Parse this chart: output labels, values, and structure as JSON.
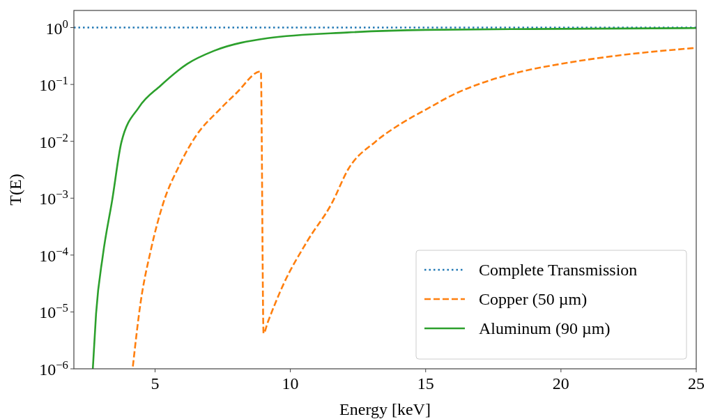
{
  "chart_data": {
    "type": "line",
    "xlabel": "Energy [keV]",
    "ylabel": "T(E)",
    "log": "y",
    "xlim": [
      2,
      25
    ],
    "xticks": [
      5,
      10,
      15,
      20,
      25
    ],
    "ylim": [
      1e-06,
      2
    ],
    "yticks": [
      {
        "value": 1,
        "label": "10$^{0}$"
      },
      {
        "value": 0.1,
        "label": "10$^{−1}$"
      },
      {
        "value": 0.01,
        "label": "10$^{−2}$"
      },
      {
        "value": 0.001,
        "label": "10$^{−3}$"
      },
      {
        "value": 0.0001,
        "label": "10$^{−4}$"
      },
      {
        "value": 1e-05,
        "label": "10$^{−5}$"
      },
      {
        "value": 1e-06,
        "label": "10$^{−6}$"
      }
    ],
    "grid": false,
    "legend": "bottom right",
    "series": [
      {
        "name": "Complete Transmission",
        "color": "#1f77b4",
        "line_style": "dotted",
        "x": [
          2,
          25
        ],
        "values": [
          1,
          1
        ]
      },
      {
        "name": "Copper (50 µm)",
        "color": "#ff7f0e",
        "line_style": "dashed",
        "x": [
          4.18,
          4.46,
          4.85,
          5.3,
          5.89,
          6.49,
          7.38,
          8.0,
          8.91,
          9.01,
          9.16,
          9.75,
          10.64,
          11.53,
          12.15,
          13.14,
          14.13,
          15,
          16.1,
          17.1,
          18.58,
          20,
          22.05,
          25
        ],
        "values": [
          1.1e-06,
          1.4e-05,
          0.000126,
          0.00081,
          0.0037,
          0.012,
          0.036,
          0.07,
          0.17,
          4.2e-06,
          6.5e-06,
          3.1e-05,
          0.00018,
          0.00081,
          0.0033,
          0.0098,
          0.021,
          0.036,
          0.069,
          0.107,
          0.17,
          0.23,
          0.32,
          0.44
        ]
      },
      {
        "name": "Aluminum (90 µm)",
        "color": "#2ca02c",
        "line_style": "solid",
        "x": [
          2.7,
          2.82,
          3.07,
          3.42,
          3.76,
          4.41,
          5.2,
          6.19,
          7.18,
          9.16,
          12.1,
          15,
          20,
          25
        ],
        "values": [
          1e-06,
          9.3e-06,
          9.8e-05,
          0.00095,
          0.0098,
          0.04,
          0.095,
          0.23,
          0.39,
          0.65,
          0.82,
          0.91,
          0.95,
          0.98
        ]
      }
    ]
  }
}
